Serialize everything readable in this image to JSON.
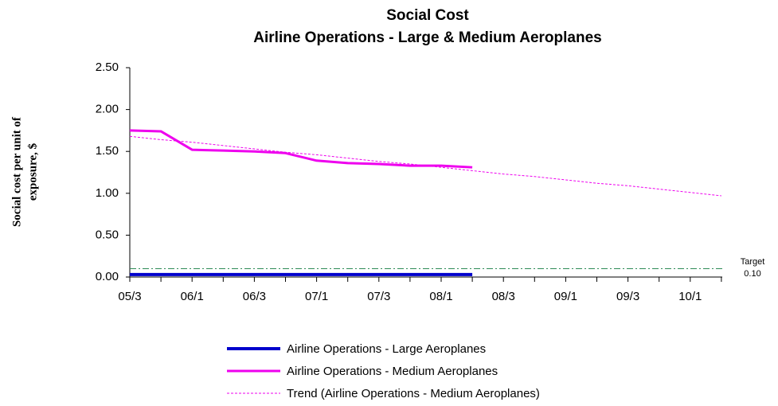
{
  "chart_data": {
    "type": "line",
    "title": "Social Cost",
    "subtitle": "Airline Operations - Large & Medium Aeroplanes",
    "ylabel": [
      "Social cost per unit of",
      "exposure, $"
    ],
    "categories": [
      "05/3",
      null,
      "06/1",
      null,
      "06/3",
      null,
      "07/1",
      null,
      "07/3",
      null,
      "08/1",
      null,
      "08/3",
      null,
      "09/1",
      null,
      "09/3",
      null,
      "10/1",
      null
    ],
    "series": [
      {
        "name": "Airline Operations - Large Aeroplanes",
        "color": "#0000cc",
        "style": "solid",
        "width": 4,
        "values": [
          0.03,
          0.03,
          0.03,
          0.03,
          0.03,
          0.03,
          0.03,
          0.03,
          0.03,
          0.03,
          0.03,
          0.03,
          null,
          null,
          null,
          null,
          null,
          null,
          null,
          null
        ]
      },
      {
        "name": "Airline Operations - Medium Aeroplanes",
        "color": "#ee00ee",
        "style": "solid",
        "width": 3,
        "values": [
          1.75,
          1.74,
          1.52,
          1.51,
          1.5,
          1.48,
          1.39,
          1.36,
          1.35,
          1.33,
          1.33,
          1.31,
          null,
          null,
          null,
          null,
          null,
          null,
          null,
          null
        ]
      },
      {
        "name": "Trend (Airline Operations - Medium Aeroplanes)",
        "color": "#ee00ee",
        "style": "dashed",
        "width": 1,
        "values": [
          1.68,
          1.64,
          1.61,
          1.57,
          1.53,
          1.49,
          1.46,
          1.42,
          1.38,
          1.35,
          1.31,
          1.27,
          1.23,
          1.2,
          1.16,
          1.12,
          1.09,
          1.05,
          1.01,
          0.97
        ]
      }
    ],
    "target": {
      "label": "Target",
      "value": 0.1,
      "value_label": "0.10",
      "color": "#2e8b57"
    },
    "ylim": [
      0,
      2.5
    ],
    "yticks": [
      {
        "value": 0,
        "label": "0.00"
      },
      {
        "value": 0.5,
        "label": "0.50"
      },
      {
        "value": 1,
        "label": "1.00"
      },
      {
        "value": 1.5,
        "label": "1.50"
      },
      {
        "value": 2,
        "label": "2.00"
      },
      {
        "value": 2.5,
        "label": "2.50"
      }
    ],
    "grid": false
  }
}
